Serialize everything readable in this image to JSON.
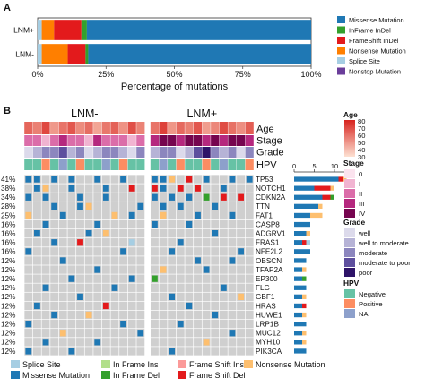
{
  "panel_a": {
    "letter": "A",
    "chart_data": {
      "type": "bar",
      "orientation": "horizontal-stacked-percent",
      "categories": [
        "LNM+",
        "LNM-"
      ],
      "series": [
        {
          "name": "Splice Site",
          "values": [
            1.5,
            1.5
          ]
        },
        {
          "name": "Nonsense Mutation",
          "values": [
            4.5,
            9.5
          ]
        },
        {
          "name": "FrameShift InDel",
          "values": [
            10,
            6.5
          ]
        },
        {
          "name": "InFrame InDel",
          "values": [
            2,
            1
          ]
        },
        {
          "name": "Missense Mutation",
          "values": [
            82,
            81.5
          ]
        }
      ],
      "xlabel": "Percentage of mutations",
      "x_ticks": [
        "0%",
        "25%",
        "50%",
        "75%",
        "100%"
      ],
      "xlim": [
        0,
        100
      ],
      "legend": [
        {
          "label": "Missense Mutation",
          "color": "#1F78B4"
        },
        {
          "label": "InFrame InDel",
          "color": "#33A02C"
        },
        {
          "label": "FrameShift InDel",
          "color": "#E31A1C"
        },
        {
          "label": "Nonsense Mutation",
          "color": "#FF7F00"
        },
        {
          "label": "Splice Site",
          "color": "#A6CEE3"
        },
        {
          "label": "Nonstop Mutation",
          "color": "#6A3D9A"
        }
      ]
    }
  },
  "panel_b": {
    "letter": "B",
    "chart_data": {
      "type": "heatmap",
      "column_groups": [
        "LNM-",
        "LNM+"
      ],
      "annotation_tracks": [
        "Age",
        "Stage",
        "Grade",
        "HPV"
      ],
      "genes": [
        "TP53",
        "NOTCH1",
        "CDKN2A",
        "TTN",
        "FAT1",
        "CASP8",
        "ADGRV1",
        "FRAS1",
        "NFE2L2",
        "OBSCN",
        "TFAP2A",
        "EP300",
        "FLG",
        "GBF1",
        "HRAS",
        "HUWE1",
        "LRP1B",
        "MUC12",
        "MYH10",
        "PIK3CA"
      ],
      "percentages": [
        "41%",
        "38%",
        "34%",
        "28%",
        "25%",
        "16%",
        "16%",
        "16%",
        "16%",
        "12%",
        "12%",
        "12%",
        "12%",
        "12%",
        "12%",
        "12%",
        "12%",
        "12%",
        "12%",
        "12%"
      ],
      "count_axis_ticks": [
        "0",
        "5",
        "10"
      ],
      "legend_variant": [
        {
          "label": "Splice Site",
          "color": "#A6CEE3"
        },
        {
          "label": "Missense Mutation",
          "color": "#1F78B4"
        },
        {
          "label": "In Frame Ins",
          "color": "#B2DF8A"
        },
        {
          "label": "In Frame Del",
          "color": "#33A02C"
        },
        {
          "label": "Frame Shift Ins",
          "color": "#FB9A99"
        },
        {
          "label": "Frame Shift Del",
          "color": "#E31A1C"
        },
        {
          "label": "Nonsense Mutation",
          "color": "#FDBF6F"
        }
      ],
      "legend_age": {
        "title": "Age",
        "ticks": [
          "80",
          "70",
          "60",
          "50",
          "40",
          "30"
        ]
      },
      "legend_stage": {
        "title": "Stage",
        "items": [
          "0",
          "I",
          "II",
          "III",
          "IV"
        ],
        "colors": [
          "#FBE3EE",
          "#F1B4D1",
          "#DB6DA9",
          "#B5287E",
          "#76054F"
        ]
      },
      "legend_grade": {
        "title": "Grade",
        "items": [
          "well",
          "well to moderate",
          "moderate",
          "moderate to poor",
          "poor"
        ],
        "colors": [
          "#DCDAEB",
          "#B6B3D6",
          "#8C86BE",
          "#5E4F9E",
          "#2E1368"
        ]
      },
      "legend_hpv": {
        "title": "HPV",
        "items": [
          "Negative",
          "Positive",
          "NA"
        ],
        "colors": [
          "#66C2A5",
          "#FC8D62",
          "#8DA0CB"
        ]
      }
    }
  }
}
